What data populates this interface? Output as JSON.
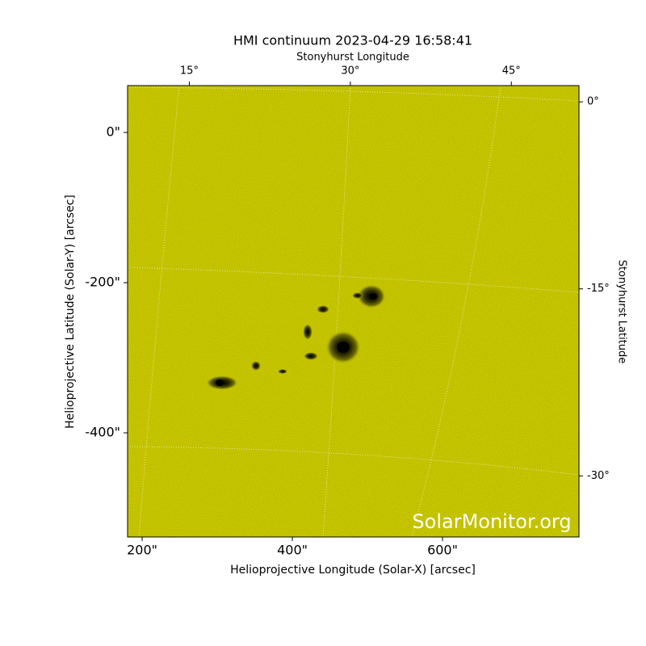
{
  "chart_data": {
    "type": "image",
    "title": "HMI continuum 2023-04-29 16:58:41",
    "xlabel": "Helioprojective Longitude (Solar-X) [arcsec]",
    "ylabel": "Helioprojective Latitude (Solar-Y) [arcsec]",
    "x2label": "Stonyhurst Longitude",
    "y2label": "Stonyhurst Latitude",
    "watermark": "SolarMonitor.org",
    "color": "#c8c800",
    "xlim": [
      180.6,
      781.7
    ],
    "ylim": [
      -538.7,
      62.4
    ],
    "xticks": [
      {
        "value": 200,
        "label": "200\""
      },
      {
        "value": 400,
        "label": "400\""
      },
      {
        "value": 600,
        "label": "600\""
      }
    ],
    "yticks": [
      {
        "value": 0,
        "label": "0\""
      },
      {
        "value": -200,
        "label": "-200\""
      },
      {
        "value": -400,
        "label": "-400\""
      }
    ],
    "x2lim": [
      9.25,
      51.3
    ],
    "x2ticks": [
      {
        "value": 15,
        "label": "15°"
      },
      {
        "value": 30,
        "label": "30°"
      },
      {
        "value": 45,
        "label": "45°"
      }
    ],
    "y2lim": [
      -34.9,
      1.3
    ],
    "y2ticks": [
      {
        "value": 0,
        "label": "0°"
      },
      {
        "value": -15,
        "label": "-15°"
      },
      {
        "value": -30,
        "label": "-30°"
      }
    ]
  }
}
